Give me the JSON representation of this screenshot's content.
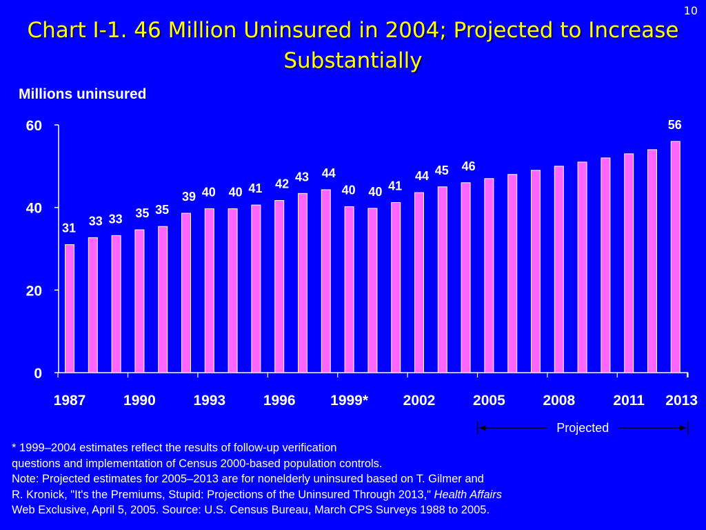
{
  "slide": {
    "number": "10"
  },
  "title": {
    "line1": "Chart I-1. 46 Million Uninsured in 2004; Projected to Increase",
    "line2": "Substantially"
  },
  "colors": {
    "background": "#0000ff",
    "title": "#ffff00",
    "bar": "#ff66ff",
    "bar_edge": "#ffffff",
    "text": "#ffffff"
  },
  "chart_data": {
    "type": "bar",
    "ylabel": "Millions uninsured",
    "ylim": [
      0,
      60
    ],
    "yticks": [
      "0",
      "20",
      "40",
      "60"
    ],
    "grid": false,
    "categories": [
      "1987",
      "1988",
      "1989",
      "1990",
      "1991",
      "1992",
      "1993",
      "1994",
      "1995",
      "1996",
      "1997",
      "1998",
      "1999",
      "2000",
      "2001",
      "2002",
      "2003",
      "2004",
      "2005",
      "2006",
      "2007",
      "2008",
      "2009",
      "2010",
      "2011",
      "2012",
      "2013"
    ],
    "values": [
      31,
      32.7,
      33.2,
      34.6,
      35.4,
      38.6,
      39.7,
      39.7,
      40.6,
      41.7,
      43.4,
      44.3,
      40.2,
      39.8,
      41.2,
      43.6,
      45,
      46,
      47,
      48,
      49,
      50,
      51,
      52,
      53,
      54,
      56
    ],
    "data_labels": [
      "31",
      "33",
      "33",
      "35",
      "35",
      "39",
      "40",
      "40",
      "41",
      "42",
      "43",
      "44",
      "40",
      "40",
      "41",
      "44",
      "45",
      "46",
      "",
      "",
      "",
      "",
      "",
      "",
      "",
      "",
      "56"
    ],
    "xtick_labels": [
      {
        "label": "1987",
        "category": "1987"
      },
      {
        "label": "1990",
        "category": "1990"
      },
      {
        "label": "1993",
        "category": "1993"
      },
      {
        "label": "1996",
        "category": "1996"
      },
      {
        "label": "1999*",
        "category": "1999"
      },
      {
        "label": "2002",
        "category": "2002"
      },
      {
        "label": "2005",
        "category": "2005"
      },
      {
        "label": "2008",
        "category": "2008"
      },
      {
        "label": "2011",
        "category": "2011"
      },
      {
        "label": "2013",
        "category": "2013"
      }
    ],
    "annotations": [
      {
        "text": "Projected",
        "from": "2005",
        "to": "2013"
      }
    ]
  },
  "footnote": {
    "line1": "* 1999–2004 estimates reflect the results of follow-up verification",
    "line2": "questions and implementation of Census 2000-based population controls.",
    "line3": "Note: Projected estimates for 2005–2013 are for nonelderly uninsured based on T. Gilmer and",
    "line4": "R. Kronick, \"It's the Premiums, Stupid: Projections of the Uninsured Through 2013,\" ",
    "line4_italic": "Health Affairs",
    "line5": "Web Exclusive, April 5, 2005. Source: U.S. Census Bureau, March CPS Surveys 1988 to 2005."
  }
}
